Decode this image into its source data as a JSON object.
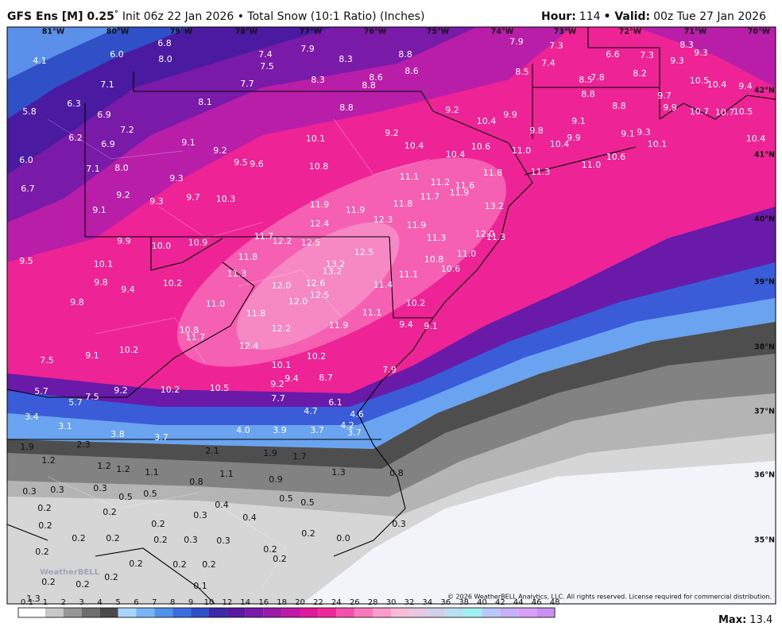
{
  "header": {
    "title": "GFS Ens [M] 0.25",
    "degree": "°",
    "subtitle": "Init 06z 22 Jan 2026 • Total Snow (10:1 Ratio) (Inches)",
    "hour_label": "Hour:",
    "hour": "114",
    "valid_label": "• Valid:",
    "valid": "00z Tue 27 Jan 2026"
  },
  "map": {
    "longitudes": [
      "81°W",
      "80°W",
      "79°W",
      "78°W",
      "77°W",
      "76°W",
      "75°W",
      "74°W",
      "73°W",
      "72°W",
      "71°W",
      "70°W"
    ],
    "latitudes": [
      "42°N",
      "41°N",
      "40°N",
      "39°N",
      "38°N",
      "37°N",
      "36°N",
      "35°N"
    ],
    "labels": [
      "4.1",
      "6.0",
      "6.8",
      "8.0",
      "7.4",
      "7.9",
      "7.5",
      "8.3",
      "8.8",
      "8.6",
      "8.6",
      "8.8",
      "8.3",
      "7.7",
      "7.1",
      "7.9",
      "7.3",
      "7.4",
      "8.5",
      "6.6",
      "7.3",
      "8.3",
      "9.3",
      "9.3",
      "8.2",
      "8.5",
      "7.8",
      "8.8",
      "10.5",
      "10.4",
      "9.4",
      "9.7",
      "9.9",
      "10.7",
      "10.7",
      "10.5",
      "10.4",
      "5.8",
      "6.3",
      "6.9",
      "8.1",
      "8.8",
      "9.2",
      "10.4",
      "9.9",
      "9.8",
      "9.1",
      "8.8",
      "9.1",
      "9.3",
      "10.1",
      "10.4",
      "9.9",
      "10.6",
      "11.0",
      "11.3",
      "11.0",
      "11.8",
      "10.6",
      "10.4",
      "10.4",
      "9.2",
      "10.1",
      "7.2",
      "6.2",
      "6.9",
      "9.1",
      "9.2",
      "9.5",
      "9.6",
      "10.8",
      "6.0",
      "7.1",
      "8.0",
      "9.3",
      "6.7",
      "9.2",
      "9.7",
      "10.3",
      "11.1",
      "11.2",
      "11.6",
      "11.9",
      "11.7",
      "11.9",
      "11.9",
      "11.8",
      "12.3",
      "12.4",
      "13.2",
      "9.1",
      "9.3",
      "11.9",
      "12.0",
      "11.3",
      "11.3",
      "11.7",
      "12.2",
      "12.5",
      "9.9",
      "10.0",
      "10.9",
      "11.8",
      "12.5",
      "11.0",
      "10.8",
      "10.6",
      "9.5",
      "10.1",
      "13.2",
      "13.2",
      "11.3",
      "11.1",
      "9.8",
      "9.4",
      "10.2",
      "12.0",
      "12.6",
      "12.5",
      "11.4",
      "12.0",
      "9.8",
      "11.0",
      "11.8",
      "10.2",
      "11.1",
      "10.8",
      "12.2",
      "11.9",
      "9.4",
      "9.1",
      "11.7",
      "12.4",
      "9.1",
      "10.2",
      "10.2",
      "10.1",
      "7.5",
      "9.4",
      "8.7",
      "7.9",
      "9.2",
      "10.2",
      "10.5",
      "9.2",
      "7.7",
      "5.7",
      "7.5",
      "5.7",
      "6.1",
      "4.7",
      "4.6",
      "3.4",
      "4.2",
      "3.1",
      "4.0",
      "3.9",
      "3.7",
      "3.7",
      "3.8",
      "3.7",
      "1.9",
      "2.3",
      "2.1",
      "1.9",
      "1.7",
      "1.2",
      "1.2",
      "1.2",
      "1.1",
      "1.1",
      "1.3",
      "0.8",
      "0.8",
      "0.9",
      "0.3",
      "0.3",
      "0.3",
      "0.5",
      "0.5",
      "0.5",
      "0.5",
      "0.2",
      "0.2",
      "0.4",
      "0.3",
      "0.4",
      "0.2",
      "0.2",
      "0.3",
      "0.2",
      "0.2",
      "0.2",
      "0.3",
      "0.3",
      "0.2",
      "0.0",
      "0.2",
      "0.2",
      "0.2",
      "0.2",
      "0.2",
      "0.2",
      "0.2",
      "0.2",
      "0.2",
      "0.1",
      "1.3"
    ],
    "watermark": "WeatherBELL",
    "copyright": "© 2026 WeatherBELL Analytics, LLC. All rights reserved. License required for commercial distribution."
  },
  "colorbar": {
    "ticks": [
      "0.1",
      "1",
      "2",
      "3",
      "4",
      "5",
      "6",
      "7",
      "8",
      "9",
      "10",
      "12",
      "14",
      "16",
      "18",
      "20",
      "22",
      "24",
      "26",
      "28",
      "30",
      "32",
      "34",
      "36",
      "38",
      "40",
      "42",
      "44",
      "46",
      "48"
    ],
    "colors": [
      "#ffffff",
      "#c8c8c8",
      "#969696",
      "#6e6e6e",
      "#4a4a4a",
      "#a8d4ff",
      "#7ab4f5",
      "#4f92ec",
      "#3a6ee0",
      "#2f4fc8",
      "#3a2aa8",
      "#5a1aa0",
      "#7a1aa8",
      "#9c1aa8",
      "#c018a8",
      "#e0189c",
      "#f0289a",
      "#f550ac",
      "#f878bc",
      "#fa9ccc",
      "#f8bcd8",
      "#e8c8e0",
      "#d0d0e8",
      "#b8e0f0",
      "#a0f0f0",
      "#b8c8f8",
      "#c8b0f8",
      "#d8a0f8",
      "#c890f0"
    ],
    "max_label": "Max:",
    "max": "13.4"
  }
}
